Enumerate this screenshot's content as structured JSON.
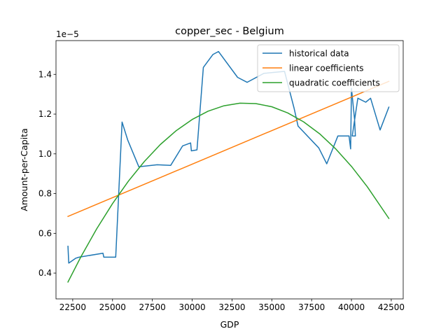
{
  "chart_data": {
    "type": "line",
    "title": "copper_sec - Belgium",
    "xlabel": "GDP",
    "ylabel": "Amount-per-Capita",
    "y_multiplier_label": "1e−5",
    "xlim": [
      21450,
      43250
    ],
    "ylim": [
      0.27,
      1.57
    ],
    "x_ticks": [
      22500,
      25000,
      27500,
      30000,
      32500,
      35000,
      37500,
      40000,
      42500
    ],
    "x_tick_labels": [
      "22500",
      "25000",
      "27500",
      "30000",
      "32500",
      "35000",
      "37500",
      "40000",
      "42500"
    ],
    "y_ticks": [
      0.4,
      0.6,
      0.8,
      1.0,
      1.2,
      1.4
    ],
    "y_tick_labels": [
      "0.4",
      "0.6",
      "0.8",
      "1.0",
      "1.2",
      "1.4"
    ],
    "grid": false,
    "legend_position": "top-right",
    "series": [
      {
        "name": "historical data",
        "color": "#1f77b4",
        "x": [
          22200,
          22250,
          22700,
          22900,
          24400,
          24450,
          25200,
          25600,
          25950,
          26650,
          27800,
          28650,
          29400,
          29900,
          29950,
          30300,
          30700,
          31300,
          31650,
          32850,
          33450,
          34500,
          35800,
          36400,
          36650,
          37950,
          38450,
          39150,
          39850,
          39950,
          40000,
          40200,
          40250,
          40050,
          40400,
          40900,
          41200,
          41800,
          42350
        ],
        "y": [
          0.535,
          0.45,
          0.475,
          0.48,
          0.5,
          0.48,
          0.48,
          1.16,
          1.07,
          0.935,
          0.945,
          0.942,
          1.04,
          1.055,
          1.015,
          1.02,
          1.435,
          1.5,
          1.515,
          1.385,
          1.36,
          1.405,
          1.415,
          1.23,
          1.14,
          1.03,
          0.95,
          1.09,
          1.09,
          1.025,
          1.33,
          1.17,
          1.09,
          1.09,
          1.28,
          1.26,
          1.28,
          1.12,
          1.235
        ]
      },
      {
        "name": "linear coefficients",
        "color": "#ff7f0e",
        "x": [
          22200,
          42350
        ],
        "y": [
          0.685,
          1.365
        ]
      },
      {
        "name": "quadratic coefficients",
        "color": "#2ca02c",
        "x": [
          22200,
          23000,
          24000,
          25000,
          26000,
          27000,
          28000,
          29000,
          30000,
          31000,
          32000,
          33000,
          34000,
          35000,
          36000,
          37000,
          38000,
          39000,
          40000,
          41000,
          42350
        ],
        "y": [
          0.355,
          0.48,
          0.622,
          0.75,
          0.863,
          0.962,
          1.047,
          1.117,
          1.173,
          1.215,
          1.242,
          1.255,
          1.253,
          1.237,
          1.206,
          1.161,
          1.101,
          1.026,
          0.937,
          0.834,
          0.675
        ]
      }
    ]
  }
}
